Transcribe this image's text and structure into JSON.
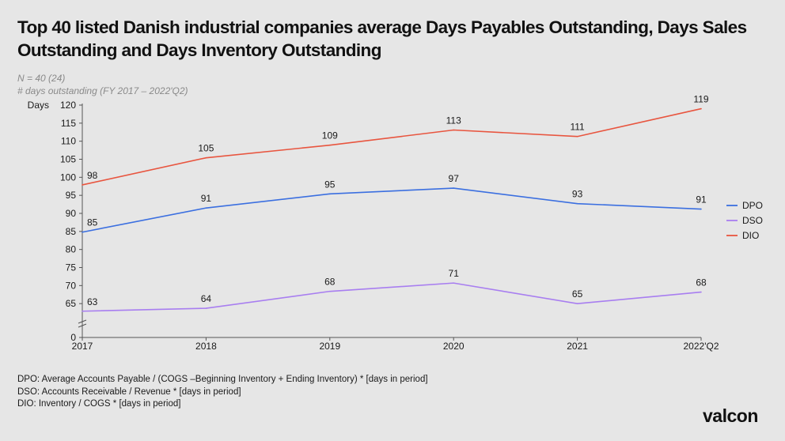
{
  "title": "Top 40 listed Danish industrial companies average Days Payables Outstanding, Days Sales Outstanding and Days Inventory Outstanding",
  "subtitle_n": "N = 40 (24)",
  "subtitle_unit": "# days outstanding (FY 2017 – 2022'Q2)",
  "footnotes": [
    "DPO: Average Accounts Payable / (COGS –Beginning Inventory  + Ending Inventory)  * [days in period]",
    "DSO: Accounts Receivable / Revenue  * [days in period]",
    "DIO: Inventory  / COGS * [days in period]"
  ],
  "logo": "valcon",
  "chart_data": {
    "type": "line",
    "categories": [
      "2017",
      "2018",
      "2019",
      "2020",
      "2021",
      "2022'Q2"
    ],
    "ylabel": "Days",
    "y_ticks": [
      "0",
      "65",
      "70",
      "75",
      "80",
      "85",
      "90",
      "95",
      "100",
      "105",
      "110",
      "115",
      "120"
    ],
    "ylim": [
      60,
      120
    ],
    "axis_break": true,
    "legend_position": "right",
    "series": [
      {
        "name": "DPO",
        "color": "#3b6fe0",
        "values": [
          84.8,
          91.5,
          95.4,
          97.0,
          92.7,
          91.2
        ],
        "labels": [
          "85",
          "91",
          "95",
          "97",
          "93",
          "91"
        ]
      },
      {
        "name": "DSO",
        "color": "#a87ef0",
        "values": [
          62.9,
          63.7,
          68.4,
          70.7,
          65.0,
          68.2
        ],
        "labels": [
          "63",
          "64",
          "68",
          "71",
          "65",
          "68"
        ]
      },
      {
        "name": "DIO",
        "color": "#e8553f",
        "values": [
          97.9,
          105.4,
          108.9,
          113.1,
          111.3,
          119.0
        ],
        "labels": [
          "98",
          "105",
          "109",
          "113",
          "111",
          "119"
        ]
      }
    ]
  }
}
